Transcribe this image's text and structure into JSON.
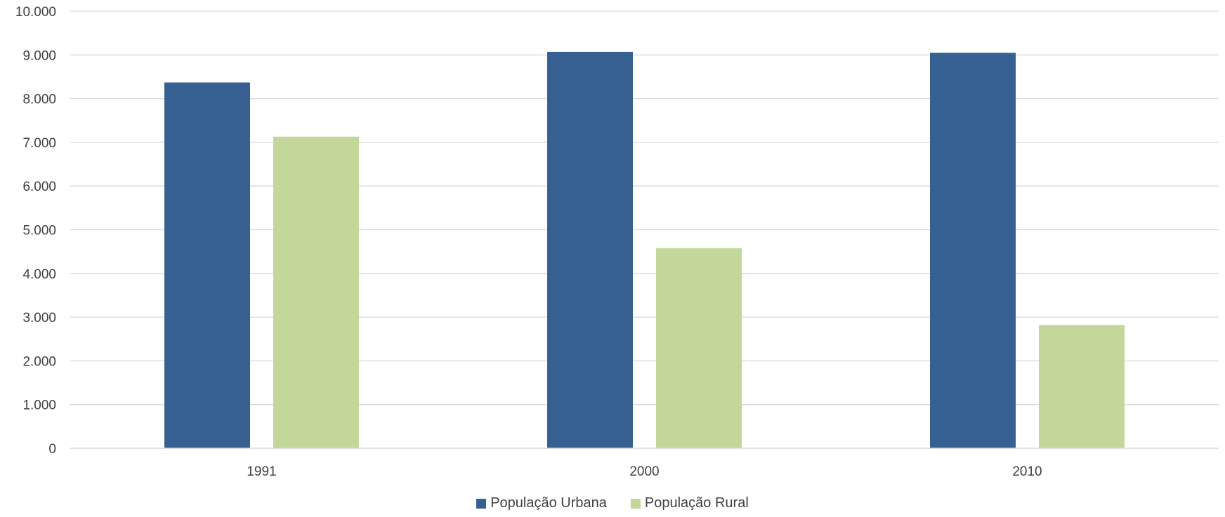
{
  "chart_data": {
    "type": "bar",
    "title": "",
    "xlabel": "",
    "ylabel": "",
    "categories": [
      "1991",
      "2000",
      "2010"
    ],
    "ylim": [
      0,
      10000
    ],
    "yticks": [
      0,
      1000,
      2000,
      3000,
      4000,
      5000,
      6000,
      7000,
      8000,
      9000,
      10000
    ],
    "ytick_labels": [
      "0",
      "1.000",
      "2.000",
      "3.000",
      "4.000",
      "5.000",
      "6.000",
      "7.000",
      "8.000",
      "9.000",
      "10.000"
    ],
    "grid": true,
    "legend_position": "bottom",
    "series": [
      {
        "name": "População Urbana",
        "color": "#376092",
        "values": [
          8370,
          9070,
          9050
        ]
      },
      {
        "name": "População Rural",
        "color": "#C4D79B",
        "values": [
          7130,
          4580,
          2820
        ]
      }
    ]
  }
}
